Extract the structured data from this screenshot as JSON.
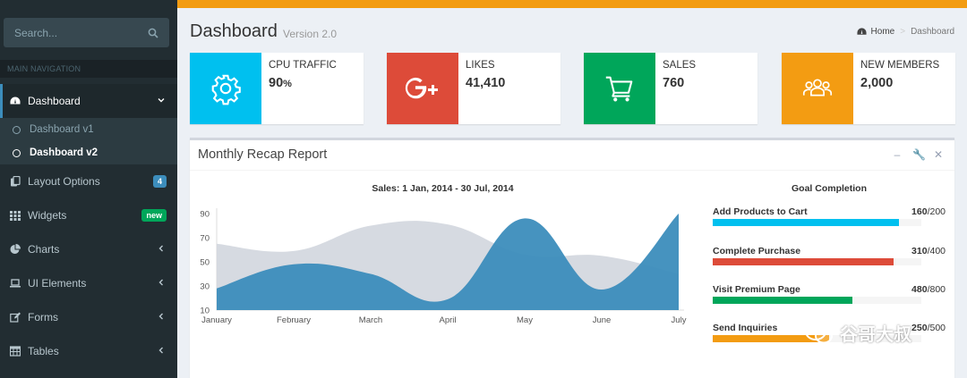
{
  "sidebar": {
    "search_placeholder": "Search...",
    "nav_header": "MAIN NAVIGATION",
    "items": [
      {
        "label": "Dashboard",
        "icon": "dashboard-icon"
      },
      {
        "label": "Layout Options",
        "icon": "files-icon",
        "badge": "4"
      },
      {
        "label": "Widgets",
        "icon": "th-icon",
        "badge": "new"
      },
      {
        "label": "Charts",
        "icon": "pie-chart-icon"
      },
      {
        "label": "UI Elements",
        "icon": "laptop-icon"
      },
      {
        "label": "Forms",
        "icon": "edit-icon"
      },
      {
        "label": "Tables",
        "icon": "table-icon"
      }
    ],
    "submenu": [
      {
        "label": "Dashboard v1"
      },
      {
        "label": "Dashboard v2"
      }
    ]
  },
  "header": {
    "title": "Dashboard",
    "subtitle": "Version 2.0",
    "breadcrumb_home": "Home",
    "breadcrumb_current": "Dashboard"
  },
  "info_boxes": [
    {
      "label": "CPU TRAFFIC",
      "value": "90",
      "unit": "%",
      "color": "#00c0ef",
      "icon": "gear-icon"
    },
    {
      "label": "LIKES",
      "value": "41,410",
      "color": "#dd4b39",
      "icon": "google-plus-icon"
    },
    {
      "label": "SALES",
      "value": "760",
      "color": "#00a65a",
      "icon": "shopping-cart-icon"
    },
    {
      "label": "NEW MEMBERS",
      "value": "2,000",
      "color": "#f39c12",
      "icon": "users-icon"
    }
  ],
  "report": {
    "title": "Monthly Recap Report",
    "chart_title": "Sales: 1 Jan, 2014 - 30 Jul, 2014",
    "goal_title": "Goal Completion",
    "goals": [
      {
        "label": "Add Products to Cart",
        "value": "160",
        "total": "/200",
        "fraction": 0.8,
        "color": "#00c0ef"
      },
      {
        "label": "Complete Purchase",
        "value": "310",
        "total": "/400",
        "fraction": 0.775,
        "color": "#dd4b39"
      },
      {
        "label": "Visit Premium Page",
        "value": "480",
        "total": "/800",
        "fraction": 0.6,
        "color": "#00a65a"
      },
      {
        "label": "Send Inquiries",
        "value": "250",
        "total": "/500",
        "fraction": 0.5,
        "color": "#f39c12"
      }
    ]
  },
  "watermark": {
    "text": "谷哥大叔"
  },
  "chart_data": {
    "type": "area",
    "title": "Sales: 1 Jan, 2014 - 30 Jul, 2014",
    "categories": [
      "January",
      "February",
      "March",
      "April",
      "May",
      "June",
      "July"
    ],
    "ylim": [
      10,
      90
    ],
    "yticks": [
      10,
      30,
      50,
      70,
      90
    ],
    "grid": false,
    "series": [
      {
        "values": [
          65,
          59,
          80,
          81,
          56,
          55,
          40
        ],
        "color": "#d2d6de"
      },
      {
        "values": [
          28,
          48,
          40,
          19,
          86,
          27,
          90
        ],
        "color": "#3c8dbc"
      }
    ]
  }
}
